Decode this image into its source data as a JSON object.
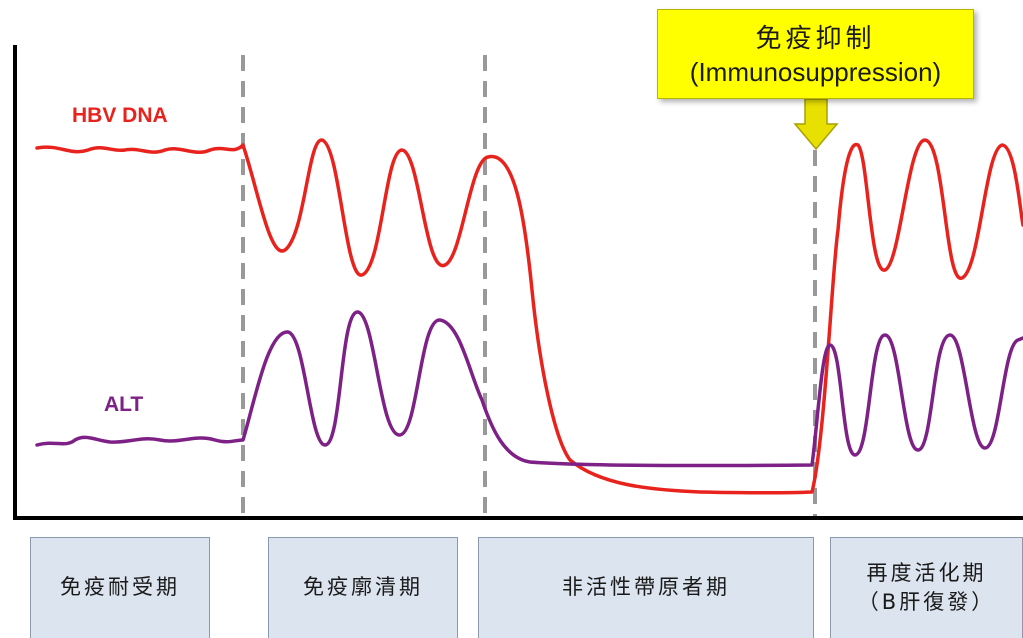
{
  "series": [
    {
      "key": "hbv",
      "label": "HBV DNA",
      "color": "#e8231d"
    },
    {
      "key": "alt",
      "label": "ALT",
      "color": "#7d2187"
    }
  ],
  "callout": {
    "title_zh": "免疫抑制",
    "title_en": "(Immunosuppression)",
    "color": "#ffff00",
    "arrow_color": "#e8e000"
  },
  "phases": [
    {
      "lines": [
        "免疫耐受期"
      ]
    },
    {
      "lines": [
        "免疫廓清期"
      ]
    },
    {
      "lines": [
        "非活性帶原者期"
      ]
    },
    {
      "lines": [
        "再度活化期",
        "（B肝復發）"
      ]
    }
  ],
  "colors": {
    "divider": "#999999",
    "phase_box": "#dce4ef",
    "axis": "#000000"
  }
}
